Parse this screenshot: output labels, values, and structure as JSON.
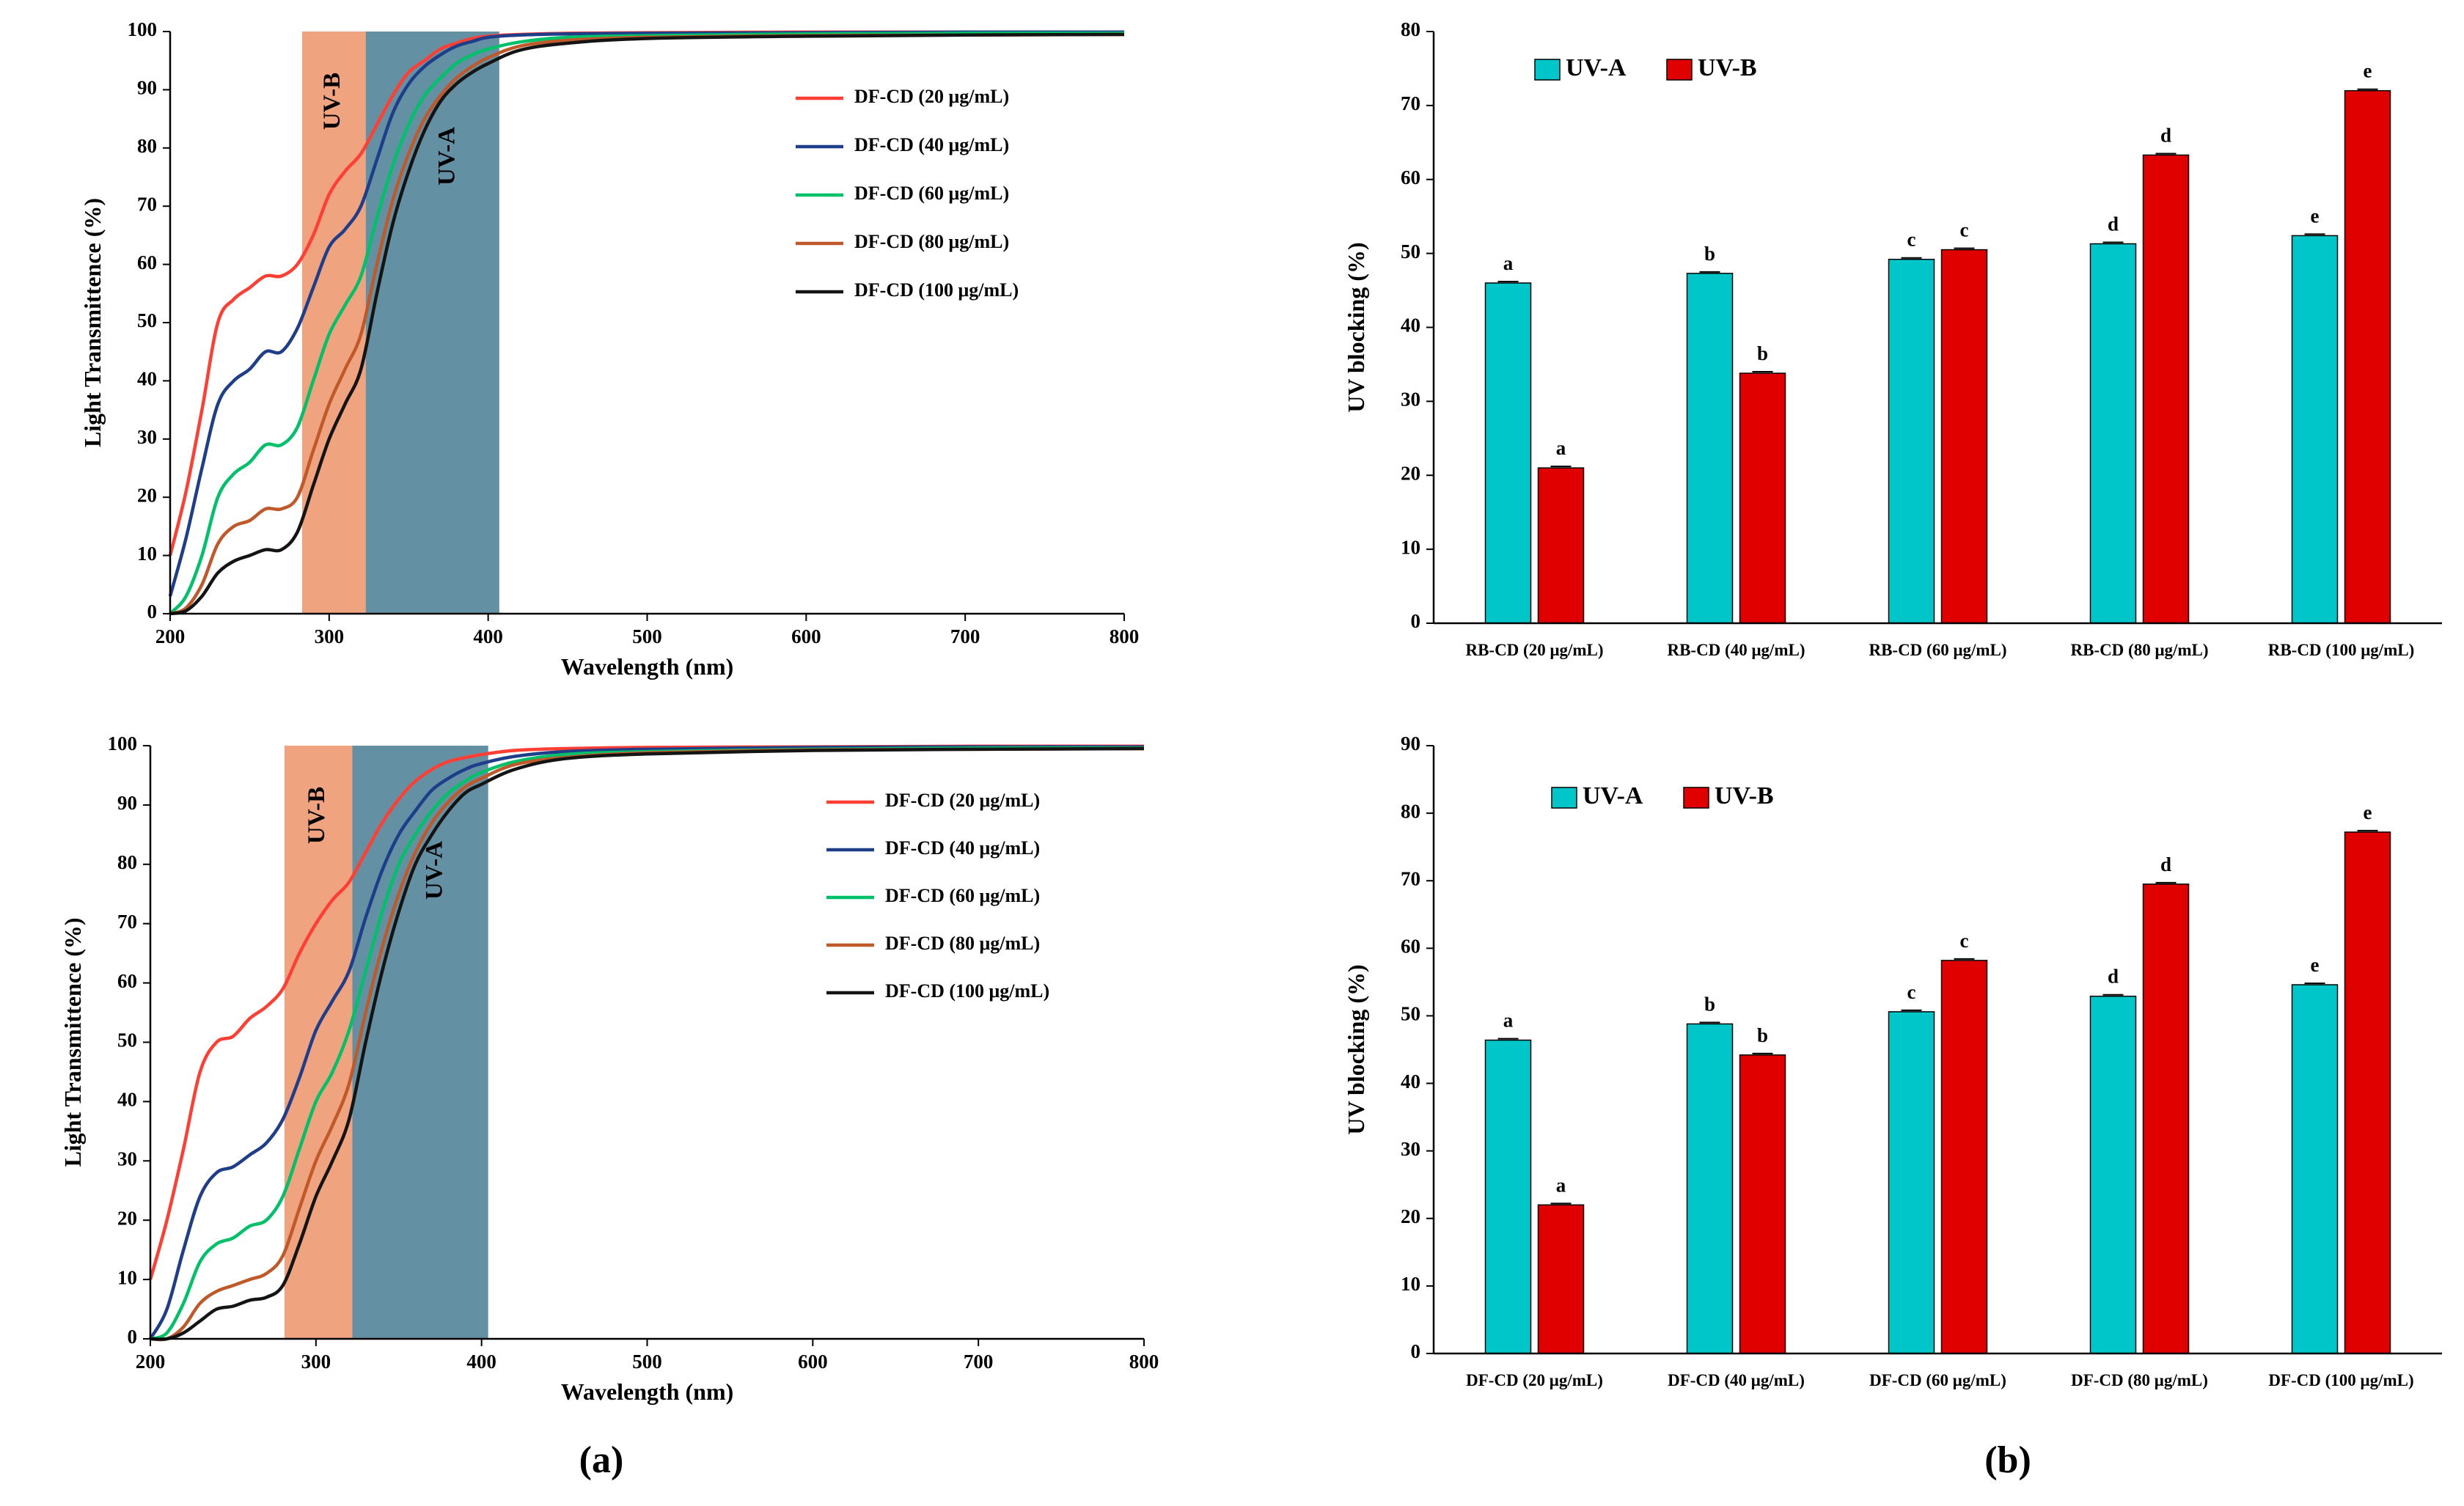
{
  "panel_labels": [
    "(a)",
    "(b)"
  ],
  "colors": {
    "uva_bar": "#00C6C9",
    "uvb_bar": "#E00000",
    "uvb_band": "#EE9E78",
    "uva_band": "#5C8A9E",
    "series": [
      "#FF3F34",
      "#1F3E8A",
      "#00C16A",
      "#C0592A",
      "#141414"
    ]
  },
  "chart_data": [
    {
      "type": "line",
      "xlabel": "Wavelength (nm)",
      "ylabel": "Light Transmittence (%)",
      "xlim": [
        200,
        800
      ],
      "ylim": [
        0,
        100
      ],
      "xticks": [
        200,
        300,
        400,
        500,
        600,
        700,
        800
      ],
      "yticks": [
        0,
        10,
        20,
        30,
        40,
        50,
        60,
        70,
        80,
        90,
        100
      ],
      "bands": [
        {
          "label": "UV-B",
          "x": [
            283,
            323
          ]
        },
        {
          "label": "UV-A",
          "x": [
            323,
            407
          ]
        }
      ],
      "legend_position": "top-right",
      "series": [
        {
          "name": "DF-CD (20 μg/mL)",
          "x": [
            200,
            210,
            220,
            230,
            240,
            250,
            260,
            270,
            280,
            290,
            300,
            310,
            320,
            330,
            340,
            350,
            360,
            370,
            380,
            390,
            400,
            420,
            450,
            500,
            600,
            700,
            800
          ],
          "y": [
            10,
            21,
            35,
            50,
            54,
            56,
            58,
            58,
            60,
            65,
            72,
            76,
            79,
            84,
            89,
            93,
            95,
            97,
            98,
            98.8,
            99.2,
            99.5,
            99.7,
            99.8,
            99.9,
            99.9,
            99.9
          ]
        },
        {
          "name": "DF-CD (40 μg/mL)",
          "x": [
            200,
            210,
            220,
            230,
            240,
            250,
            260,
            270,
            280,
            290,
            300,
            310,
            320,
            330,
            340,
            350,
            360,
            370,
            380,
            390,
            400,
            420,
            450,
            500,
            600,
            700,
            800
          ],
          "y": [
            3,
            13,
            25,
            36,
            40,
            42,
            45,
            45,
            49,
            56,
            63,
            66,
            70,
            78,
            86,
            91,
            94,
            96,
            97.5,
            98.3,
            99,
            99.4,
            99.6,
            99.7,
            99.8,
            99.9,
            99.9
          ]
        },
        {
          "name": "DF-CD (60 μg/mL)",
          "x": [
            200,
            210,
            220,
            230,
            240,
            250,
            260,
            270,
            280,
            290,
            300,
            310,
            320,
            330,
            340,
            350,
            360,
            370,
            380,
            390,
            400,
            420,
            450,
            500,
            600,
            700,
            800
          ],
          "y": [
            0,
            3,
            10,
            20,
            24,
            26,
            29,
            29,
            32,
            40,
            48,
            53,
            58,
            68,
            77,
            84,
            89,
            92,
            94.5,
            96,
            97,
            98.2,
            99,
            99.3,
            99.6,
            99.7,
            99.7
          ]
        },
        {
          "name": "DF-CD (80 μg/mL)",
          "x": [
            200,
            210,
            220,
            230,
            240,
            250,
            260,
            270,
            280,
            290,
            300,
            310,
            320,
            330,
            340,
            350,
            360,
            370,
            380,
            390,
            400,
            420,
            450,
            500,
            600,
            700,
            800
          ],
          "y": [
            0,
            1,
            5,
            12,
            15,
            16,
            18,
            18,
            20,
            28,
            36,
            42,
            48,
            60,
            71,
            79,
            85,
            89,
            92,
            94,
            95.5,
            97.5,
            98.5,
            99,
            99.3,
            99.4,
            99.5
          ]
        },
        {
          "name": "DF-CD (100 μg/mL)",
          "x": [
            200,
            210,
            220,
            230,
            240,
            250,
            260,
            270,
            280,
            290,
            300,
            310,
            320,
            330,
            340,
            350,
            360,
            370,
            380,
            390,
            400,
            420,
            450,
            500,
            600,
            700,
            800
          ],
          "y": [
            0,
            0.5,
            3,
            7,
            9,
            10,
            11,
            11,
            14,
            22,
            30,
            36,
            42,
            55,
            67,
            76,
            83,
            88,
            91,
            93,
            94.5,
            96.8,
            98,
            98.8,
            99.2,
            99.4,
            99.5
          ]
        }
      ]
    },
    {
      "type": "bar",
      "ylabel": "UV blocking (%)",
      "ylim": [
        0,
        80
      ],
      "yticks": [
        0,
        10,
        20,
        30,
        40,
        50,
        60,
        70,
        80
      ],
      "legend_position": "top-left",
      "categories": [
        "RB-CD (20 μg/mL)",
        "RB-CD (40 μg/mL)",
        "RB-CD (60 μg/mL)",
        "RB-CD (80 μg/mL)",
        "RB-CD (100 μg/mL)"
      ],
      "series": [
        {
          "name": "UV-A",
          "values": [
            46,
            47.3,
            49.2,
            51.3,
            52.4
          ],
          "letters": [
            "a",
            "b",
            "c",
            "d",
            "e"
          ]
        },
        {
          "name": "UV-B",
          "values": [
            21,
            33.8,
            50.5,
            63.3,
            72
          ],
          "letters": [
            "a",
            "b",
            "c",
            "d",
            "e"
          ]
        }
      ]
    },
    {
      "type": "line",
      "xlabel": "Wavelength (nm)",
      "ylabel": "Light Transmittence (%)",
      "xlim": [
        200,
        800
      ],
      "ylim": [
        0,
        100
      ],
      "xticks": [
        200,
        300,
        400,
        500,
        600,
        700,
        800
      ],
      "yticks": [
        0,
        10,
        20,
        30,
        40,
        50,
        60,
        70,
        80,
        90,
        100
      ],
      "bands": [
        {
          "label": "UV-B",
          "x": [
            281,
            322
          ]
        },
        {
          "label": "UV-A",
          "x": [
            322,
            404
          ]
        }
      ],
      "legend_position": "top-right",
      "series": [
        {
          "name": "DF-CD (20 μg/mL)",
          "x": [
            200,
            210,
            220,
            230,
            240,
            250,
            260,
            270,
            280,
            290,
            300,
            310,
            320,
            330,
            340,
            350,
            360,
            370,
            380,
            390,
            400,
            420,
            450,
            500,
            600,
            700,
            800
          ],
          "y": [
            10,
            20,
            32,
            45,
            50,
            51,
            54,
            56,
            59,
            65,
            70,
            74,
            77,
            82,
            87,
            91,
            94,
            96,
            97.3,
            98,
            98.5,
            99.2,
            99.5,
            99.7,
            99.8,
            99.9,
            99.9
          ]
        },
        {
          "name": "DF-CD (40 μg/mL)",
          "x": [
            200,
            210,
            220,
            230,
            240,
            250,
            260,
            270,
            280,
            290,
            300,
            310,
            320,
            330,
            340,
            350,
            360,
            370,
            380,
            390,
            400,
            420,
            450,
            500,
            600,
            700,
            800
          ],
          "y": [
            0,
            5,
            15,
            24,
            28,
            29,
            31,
            33,
            37,
            44,
            52,
            57,
            62,
            71,
            79,
            85,
            89,
            92.5,
            94.5,
            96,
            97,
            98.2,
            99,
            99.4,
            99.7,
            99.8,
            99.8
          ]
        },
        {
          "name": "DF-CD (60 μg/mL)",
          "x": [
            200,
            210,
            220,
            230,
            240,
            250,
            260,
            270,
            280,
            290,
            300,
            310,
            320,
            330,
            340,
            350,
            360,
            370,
            380,
            390,
            400,
            420,
            450,
            500,
            600,
            700,
            800
          ],
          "y": [
            0,
            1,
            6,
            13,
            16,
            17,
            19,
            20,
            24,
            32,
            40,
            45,
            52,
            62,
            72,
            80,
            85,
            89,
            92,
            94,
            95.5,
            97.3,
            98.5,
            99,
            99.4,
            99.6,
            99.6
          ]
        },
        {
          "name": "DF-CD (80 μg/mL)",
          "x": [
            200,
            210,
            220,
            230,
            240,
            250,
            260,
            270,
            280,
            290,
            300,
            310,
            320,
            330,
            340,
            350,
            360,
            370,
            380,
            390,
            400,
            420,
            450,
            500,
            600,
            700,
            800
          ],
          "y": [
            0,
            0,
            2,
            6,
            8,
            9,
            10,
            11,
            14,
            22,
            30,
            36,
            43,
            55,
            66,
            75,
            82,
            87,
            90.5,
            93,
            94.5,
            96.8,
            98,
            98.8,
            99.3,
            99.4,
            99.5
          ]
        },
        {
          "name": "DF-CD (100 μg/mL)",
          "x": [
            200,
            210,
            220,
            230,
            240,
            250,
            260,
            270,
            280,
            290,
            300,
            310,
            320,
            330,
            340,
            350,
            360,
            370,
            380,
            390,
            400,
            420,
            450,
            500,
            600,
            700,
            800
          ],
          "y": [
            0,
            0,
            1,
            3,
            5,
            5.5,
            6.5,
            7,
            9,
            16,
            24,
            30,
            37,
            50,
            62,
            72,
            80,
            85,
            89,
            92,
            93.5,
            96,
            97.8,
            98.6,
            99.2,
            99.4,
            99.5
          ]
        }
      ]
    },
    {
      "type": "bar",
      "ylabel": "UV blocking (%)",
      "ylim": [
        0,
        90
      ],
      "yticks": [
        0,
        10,
        20,
        30,
        40,
        50,
        60,
        70,
        80,
        90
      ],
      "legend_position": "top-left",
      "categories": [
        "DF-CD (20 μg/mL)",
        "DF-CD (40 μg/mL)",
        "DF-CD (60 μg/mL)",
        "DF-CD (80 μg/mL)",
        "DF-CD (100 μg/mL)"
      ],
      "series": [
        {
          "name": "UV-A",
          "values": [
            46.4,
            48.8,
            50.6,
            52.9,
            54.6
          ],
          "letters": [
            "a",
            "b",
            "c",
            "d",
            "e"
          ]
        },
        {
          "name": "UV-B",
          "values": [
            22,
            44.2,
            58.2,
            69.5,
            77.2
          ],
          "letters": [
            "a",
            "b",
            "c",
            "d",
            "e"
          ]
        }
      ]
    }
  ]
}
